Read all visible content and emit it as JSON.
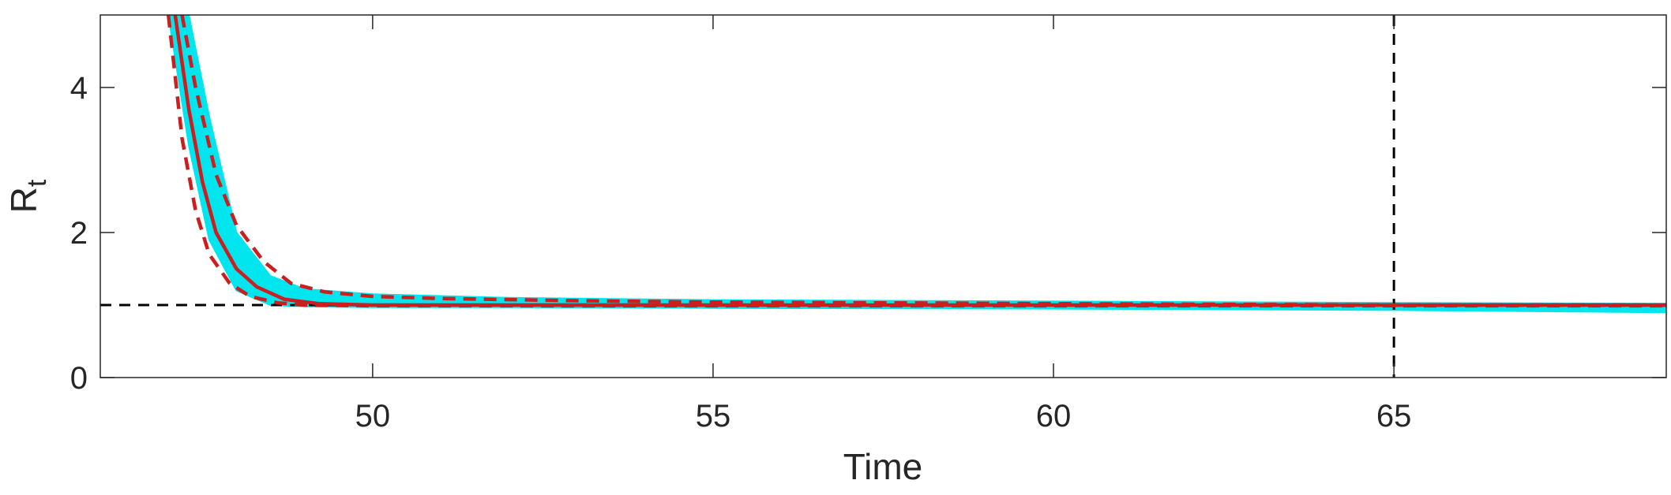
{
  "chart_data": {
    "type": "line",
    "xlabel": "Time",
    "ylabel": "R",
    "ylabel_subscript": "t",
    "xlim": [
      46,
      69
    ],
    "ylim": [
      0,
      5
    ],
    "xticks": [
      50,
      55,
      60,
      65
    ],
    "yticks": [
      0,
      2,
      4
    ],
    "x_tick_labels": [
      "50",
      "55",
      "60",
      "65"
    ],
    "y_tick_labels": [
      "0",
      "2",
      "4"
    ],
    "grid": false,
    "threshold_line": {
      "y": 1,
      "style": "dashed",
      "color": "#000000"
    },
    "vertical_marker": {
      "x": 65,
      "style": "dashed",
      "color": "#000000"
    },
    "band": {
      "color": "#00e5ee",
      "x": [
        47.0,
        47.3,
        47.6,
        48.0,
        48.5,
        49.0,
        50.0,
        52.0,
        55.0,
        60.0,
        65.0,
        69.0
      ],
      "lower": [
        5.0,
        3.2,
        1.9,
        1.2,
        1.0,
        0.98,
        0.97,
        0.97,
        0.96,
        0.95,
        0.93,
        0.9
      ],
      "upper": [
        5.0,
        5.0,
        3.6,
        2.0,
        1.4,
        1.22,
        1.15,
        1.1,
        1.07,
        1.05,
        1.03,
        1.02
      ]
    },
    "series": [
      {
        "color": "#cc1e1e",
        "style": "solid",
        "x": [
          47.1,
          47.3,
          47.5,
          47.7,
          48.0,
          48.3,
          48.7,
          49.2,
          50.0,
          52.0,
          55.0,
          60.0,
          65.0,
          69.0
        ],
        "y": [
          5.0,
          3.7,
          2.7,
          2.0,
          1.5,
          1.25,
          1.08,
          1.02,
          1.0,
          1.0,
          1.0,
          1.0,
          1.0,
          1.0
        ]
      },
      {
        "color": "#cc1e1e",
        "style": "dashed",
        "x": [
          47.0,
          47.2,
          47.4,
          47.6,
          47.9,
          48.2,
          48.6,
          49.0,
          50.0,
          52.0,
          55.0,
          60.0,
          65.0,
          69.0
        ],
        "y": [
          5.0,
          3.3,
          2.3,
          1.7,
          1.3,
          1.12,
          1.03,
          1.0,
          0.99,
          0.99,
          0.99,
          0.99,
          0.99,
          0.99
        ]
      },
      {
        "color": "#cc1e1e",
        "style": "dashed",
        "x": [
          47.2,
          47.4,
          47.7,
          48.0,
          48.4,
          48.8,
          49.3,
          50.0,
          51.0,
          53.0,
          55.0,
          60.0,
          65.0,
          69.0
        ],
        "y": [
          5.0,
          4.0,
          2.8,
          2.1,
          1.6,
          1.3,
          1.18,
          1.12,
          1.09,
          1.06,
          1.04,
          1.02,
          1.0,
          1.0
        ]
      }
    ]
  }
}
